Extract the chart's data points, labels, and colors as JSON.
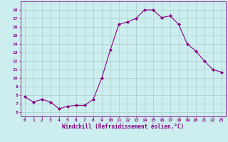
{
  "x": [
    0,
    1,
    2,
    3,
    4,
    5,
    6,
    7,
    8,
    9,
    10,
    11,
    12,
    13,
    14,
    15,
    16,
    17,
    18,
    19,
    20,
    21,
    22,
    23
  ],
  "y": [
    7.8,
    7.2,
    7.5,
    7.2,
    6.4,
    6.7,
    6.8,
    6.8,
    7.5,
    10.0,
    13.3,
    16.3,
    16.6,
    17.0,
    18.0,
    18.0,
    17.1,
    17.3,
    16.3,
    14.0,
    13.2,
    12.0,
    11.0,
    10.7
  ],
  "line_color": "#880088",
  "marker": "D",
  "marker_size": 2,
  "bg_color": "#cceeee",
  "grid_color": "#aacccc",
  "xlabel": "Windchill (Refroidissement éolien,°C)",
  "xlabel_color": "#880088",
  "tick_color": "#880088",
  "ylim": [
    5.5,
    19.0
  ],
  "xlim": [
    -0.5,
    23.5
  ],
  "yticks": [
    6,
    7,
    8,
    9,
    10,
    11,
    12,
    13,
    14,
    15,
    16,
    17,
    18
  ],
  "xticks": [
    0,
    1,
    2,
    3,
    4,
    5,
    6,
    7,
    8,
    9,
    10,
    11,
    12,
    13,
    14,
    15,
    16,
    17,
    18,
    19,
    20,
    21,
    22,
    23
  ]
}
